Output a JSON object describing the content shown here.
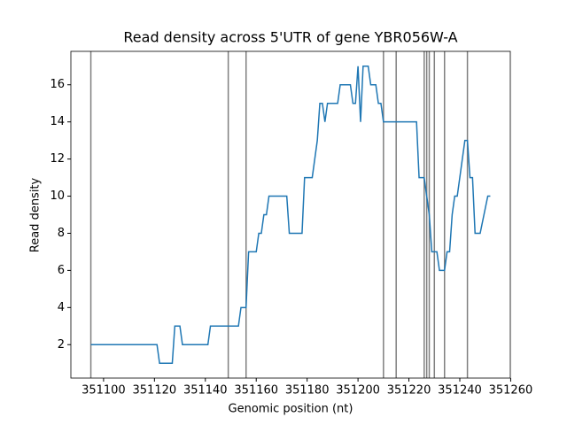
{
  "chart_data": {
    "type": "line",
    "title": "Read density across 5'UTR of gene YBR056W-A",
    "xlabel": "Genomic position (nt)",
    "ylabel": "Read density",
    "x": [
      351095,
      351121,
      351122,
      351127,
      351128,
      351130,
      351131,
      351141,
      351142,
      351153,
      351154,
      351156,
      351157,
      351160,
      351161,
      351162,
      351163,
      351164,
      351165,
      351172,
      351173,
      351178,
      351179,
      351182,
      351184,
      351185,
      351186,
      351187,
      351188,
      351192,
      351193,
      351197,
      351198,
      351199,
      351200,
      351201,
      351202,
      351204,
      351205,
      351207,
      351208,
      351209,
      351210,
      351223,
      351224,
      351226,
      351227,
      351228,
      351229,
      351231,
      351232,
      351234,
      351235,
      351236,
      351237,
      351238,
      351239,
      351242,
      351243,
      351244,
      351245,
      351246,
      351248,
      351251,
      351252
    ],
    "values": [
      2,
      2,
      1,
      1,
      3,
      3,
      2,
      2,
      3,
      3,
      4,
      4,
      7,
      7,
      8,
      8,
      9,
      9,
      10,
      10,
      8,
      8,
      11,
      11,
      13,
      15,
      15,
      14,
      15,
      15,
      16,
      16,
      15,
      15,
      17,
      14,
      17,
      17,
      16,
      16,
      15,
      15,
      14,
      14,
      11,
      11,
      10,
      9,
      7,
      7,
      6,
      6,
      7,
      7,
      9,
      10,
      10,
      13,
      13,
      11,
      11,
      8,
      8,
      10,
      10
    ],
    "color": "#1f77b4",
    "vlines": [
      351095,
      351149,
      351156,
      351210,
      351215,
      351226,
      351227,
      351228,
      351230,
      351234,
      351243
    ],
    "vline_color": "#7f7f7f",
    "xlim": [
      351087.15,
      351259.85
    ],
    "xticks": [
      351100,
      351120,
      351140,
      351160,
      351180,
      351200,
      351220,
      351240,
      351260
    ],
    "ylim": [
      0.2,
      17.8
    ],
    "yticks": [
      2,
      4,
      6,
      8,
      10,
      12,
      14,
      16
    ]
  }
}
